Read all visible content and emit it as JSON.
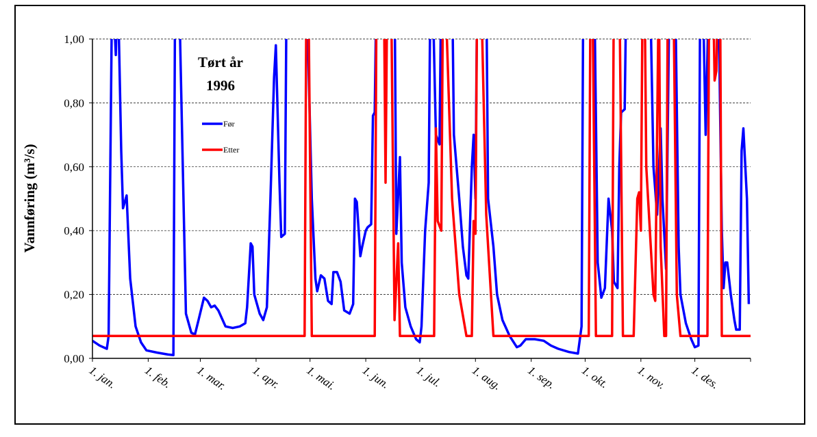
{
  "chart_data": {
    "type": "line",
    "y_label": "Vannføring (m³/s)",
    "annotation": [
      "Tørt år",
      "1996"
    ],
    "xlim": [
      0,
      366
    ],
    "ylim": [
      0,
      1
    ],
    "xticks": [
      {
        "value": 0,
        "label": "1. jan."
      },
      {
        "value": 31,
        "label": "1. feb."
      },
      {
        "value": 60,
        "label": "1. mar."
      },
      {
        "value": 91,
        "label": "1. apr."
      },
      {
        "value": 121,
        "label": "1. mai."
      },
      {
        "value": 152,
        "label": "1. jun."
      },
      {
        "value": 182,
        "label": "1. jul."
      },
      {
        "value": 213,
        "label": "1. aug."
      },
      {
        "value": 244,
        "label": "1. sep."
      },
      {
        "value": 274,
        "label": "1. okt."
      },
      {
        "value": 305,
        "label": "1. nov."
      },
      {
        "value": 335,
        "label": "1. des."
      }
    ],
    "yticks": [
      {
        "value": 0,
        "label": "0,00"
      },
      {
        "value": 0.2,
        "label": "0,20"
      },
      {
        "value": 0.4,
        "label": "0,40"
      },
      {
        "value": 0.6,
        "label": "0,60"
      },
      {
        "value": 0.8,
        "label": "0,80"
      },
      {
        "value": 1,
        "label": "1,00"
      }
    ],
    "grid": true,
    "series": [
      {
        "name": "Før",
        "color": "#0000ff",
        "x": [
          0,
          4,
          8,
          9,
          11,
          13,
          14,
          16,
          17,
          19,
          21,
          24,
          27,
          30,
          36,
          42,
          45,
          46,
          48,
          51,
          52,
          55,
          57,
          59,
          62,
          64,
          66,
          68,
          70,
          74,
          78,
          82,
          85,
          86,
          88,
          89,
          90,
          93,
          95,
          97,
          99,
          101,
          102,
          104,
          105,
          107,
          108,
          119,
          120,
          122,
          124,
          125,
          127,
          129,
          131,
          133,
          134,
          136,
          138,
          140,
          143,
          145,
          146,
          147,
          149,
          150,
          152,
          153,
          155,
          156,
          157,
          158,
          168,
          169,
          171,
          172,
          174,
          177,
          180,
          182,
          183,
          185,
          187,
          188,
          189,
          191,
          193,
          194,
          200,
          201,
          204,
          206,
          208,
          209,
          211,
          212,
          213,
          214,
          219,
          220,
          223,
          225,
          228,
          232,
          236,
          238,
          241,
          246,
          251,
          255,
          259,
          265,
          270,
          272,
          273,
          279,
          281,
          283,
          285,
          287,
          289,
          290,
          292,
          293,
          294,
          296,
          297,
          310,
          312,
          314,
          316,
          317,
          319,
          321,
          324,
          326,
          327,
          330,
          333,
          335,
          337,
          338,
          340,
          341,
          343,
          348,
          350,
          351,
          352,
          353,
          355,
          357,
          358,
          360,
          361,
          362,
          364,
          365
        ],
        "values": [
          0.055,
          0.04,
          0.03,
          0.07,
          1.2,
          0.95,
          1.2,
          0.65,
          0.47,
          0.51,
          0.25,
          0.1,
          0.05,
          0.025,
          0.018,
          0.012,
          0.01,
          1.2,
          1.2,
          0.4,
          0.14,
          0.08,
          0.075,
          0.12,
          0.19,
          0.18,
          0.16,
          0.165,
          0.15,
          0.1,
          0.095,
          0.1,
          0.11,
          0.16,
          0.36,
          0.35,
          0.2,
          0.14,
          0.12,
          0.16,
          0.5,
          0.88,
          0.98,
          0.55,
          0.38,
          0.39,
          1.2,
          1.2,
          0.95,
          0.5,
          0.25,
          0.21,
          0.26,
          0.25,
          0.18,
          0.17,
          0.27,
          0.27,
          0.24,
          0.15,
          0.14,
          0.17,
          0.5,
          0.49,
          0.32,
          0.35,
          0.4,
          0.41,
          0.42,
          0.76,
          0.77,
          1.2,
          1.2,
          0.39,
          0.63,
          0.3,
          0.16,
          0.1,
          0.06,
          0.05,
          0.1,
          0.4,
          0.55,
          1.2,
          1.2,
          0.7,
          0.67,
          1.2,
          1.2,
          0.7,
          0.5,
          0.35,
          0.26,
          0.25,
          0.6,
          0.7,
          0.5,
          1.2,
          1.2,
          0.5,
          0.35,
          0.2,
          0.12,
          0.07,
          0.035,
          0.04,
          0.06,
          0.06,
          0.055,
          0.04,
          0.03,
          0.02,
          0.015,
          0.1,
          1.2,
          1.2,
          0.3,
          0.19,
          0.22,
          0.5,
          0.4,
          0.24,
          0.22,
          0.6,
          0.77,
          0.78,
          1.2,
          1.2,
          0.6,
          0.45,
          0.72,
          0.5,
          0.28,
          1.2,
          1.2,
          0.35,
          0.2,
          0.11,
          0.06,
          0.035,
          0.04,
          1.2,
          1.0,
          0.7,
          1.2,
          1.2,
          0.4,
          0.22,
          0.3,
          0.3,
          0.2,
          0.12,
          0.09,
          0.09,
          0.65,
          0.72,
          0.5,
          0.17
        ]
      },
      {
        "name": "Etter",
        "color": "#ff0000",
        "x": [
          0,
          118,
          119,
          120,
          122,
          157,
          158,
          162,
          163,
          164,
          166,
          168,
          170,
          171,
          190,
          191,
          192,
          194,
          195,
          196,
          200,
          204,
          208,
          211,
          212,
          213,
          214,
          216,
          219,
          223,
          276,
          277,
          278,
          280,
          289,
          290,
          293,
          295,
          301,
          303,
          304,
          305,
          306,
          307,
          308,
          312,
          313,
          315,
          316,
          318,
          319,
          320,
          323,
          325,
          327,
          342,
          343,
          345,
          346,
          347,
          348,
          349,
          350,
          366
        ],
        "values": [
          0.07,
          0.07,
          1.2,
          1.2,
          0.07,
          0.07,
          1.2,
          1.2,
          0.55,
          1.2,
          1.2,
          0.12,
          0.36,
          0.07,
          0.07,
          0.72,
          0.43,
          0.4,
          1.2,
          1.2,
          0.5,
          0.2,
          0.07,
          0.07,
          0.43,
          0.39,
          1.2,
          1.2,
          0.45,
          0.07,
          0.07,
          1.2,
          1.2,
          0.07,
          0.07,
          1.2,
          1.2,
          0.07,
          0.07,
          0.5,
          0.52,
          0.4,
          1.2,
          1.2,
          0.6,
          0.2,
          0.18,
          1.2,
          0.35,
          0.07,
          0.07,
          1.2,
          1.2,
          0.2,
          0.07,
          0.07,
          1.2,
          1.2,
          0.87,
          0.9,
          1.2,
          1.2,
          0.07,
          0.07
        ]
      }
    ]
  }
}
